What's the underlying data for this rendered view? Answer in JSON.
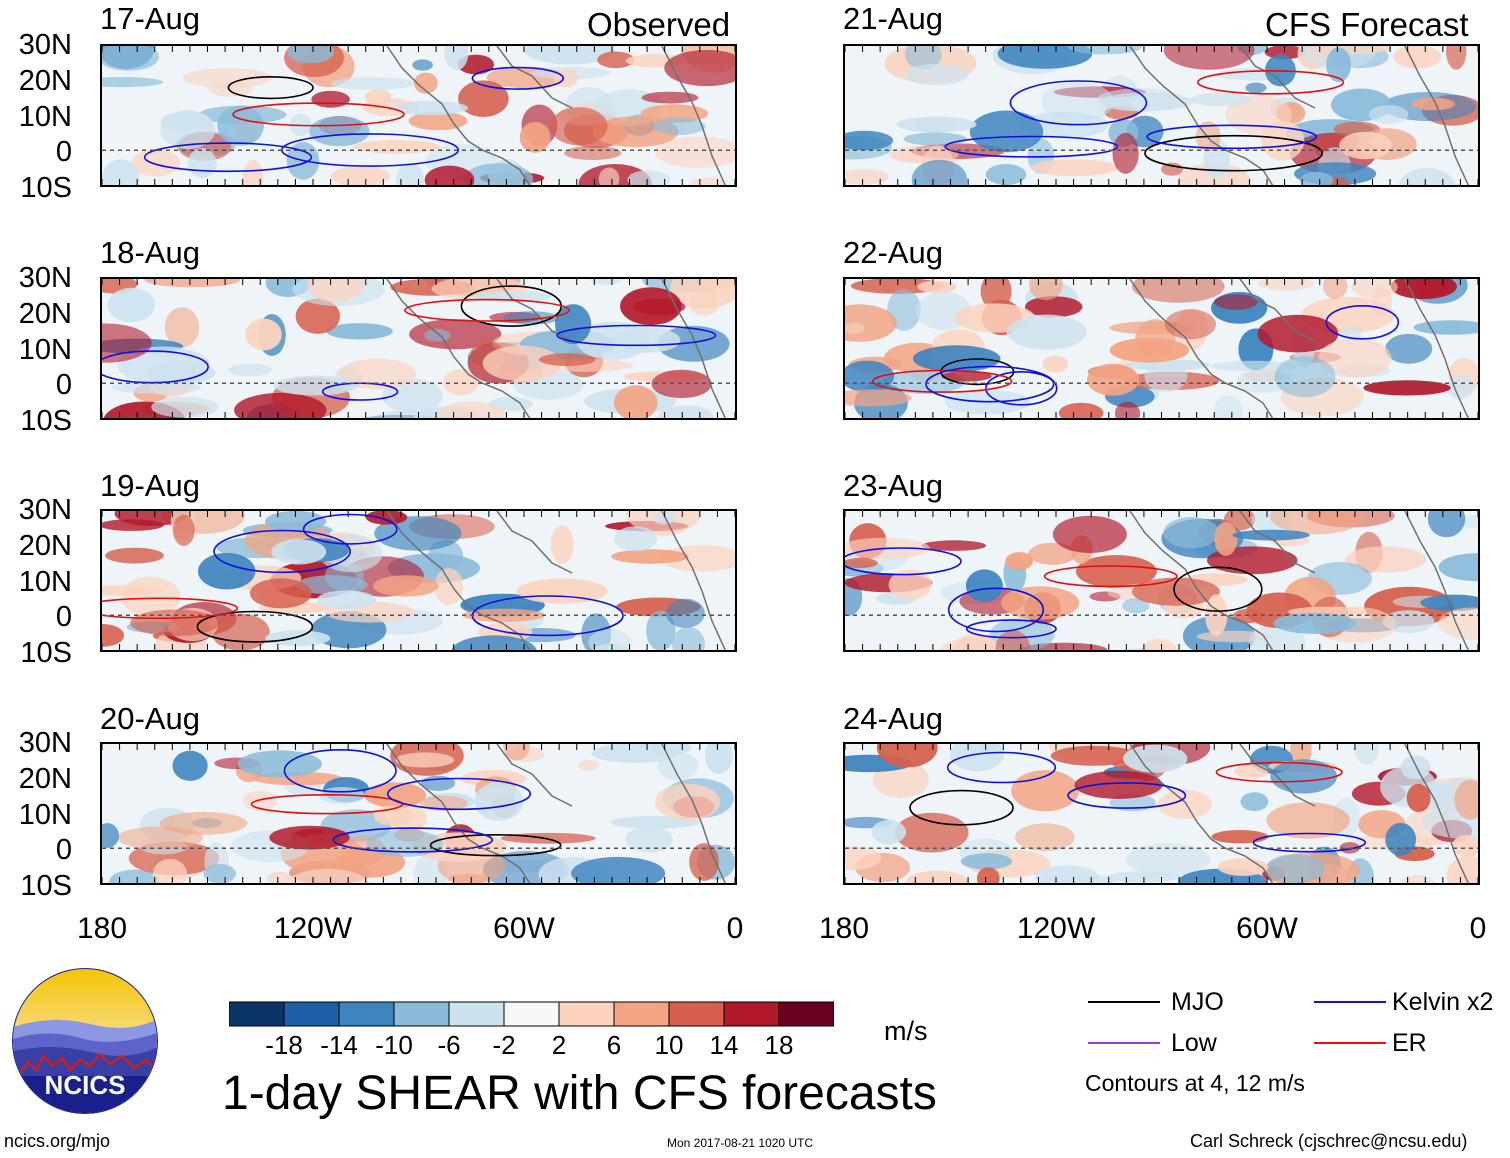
{
  "chart_data": {
    "type": "heatmap",
    "title": "1-day SHEAR with CFS forecasts",
    "units": "m/s",
    "headers": {
      "observed": "Observed",
      "forecast": "CFS Forecast"
    },
    "latitude_ticks": [
      "30N",
      "20N",
      "10N",
      "0",
      "10S"
    ],
    "longitude_ticks": [
      "180",
      "120W",
      "60W",
      "0"
    ],
    "panels_observed": [
      "17-Aug",
      "18-Aug",
      "19-Aug",
      "20-Aug"
    ],
    "panels_forecast": [
      "21-Aug",
      "22-Aug",
      "23-Aug",
      "24-Aug"
    ],
    "colorbar_levels": [
      "-18",
      "-14",
      "-10",
      "-6",
      "-2",
      "2",
      "6",
      "10",
      "14",
      "18"
    ],
    "colorbar_colors": [
      "#0b3566",
      "#1f5fa8",
      "#3e84bf",
      "#8abbd9",
      "#cde2ef",
      "#f7f7f7",
      "#fbd3bf",
      "#f2a483",
      "#d6604d",
      "#b2182b",
      "#67001f"
    ],
    "legend": [
      {
        "label": "MJO",
        "color": "#000000"
      },
      {
        "label": "Kelvin x2",
        "color": "#1010e0"
      },
      {
        "label": "Low",
        "color": "#9c3fd0"
      },
      {
        "label": "ER",
        "color": "#e01010"
      }
    ],
    "contour_note": "Contours at 4, 12 m/s",
    "zero_line": "dashed equator line"
  },
  "footer": {
    "website": "ncics.org/mjo",
    "timestamp": "Mon 2017-08-21 1020 UTC",
    "credit": "Carl Schreck (cjschrec@ncsu.edu)"
  },
  "logo": {
    "text": "NCICS"
  }
}
